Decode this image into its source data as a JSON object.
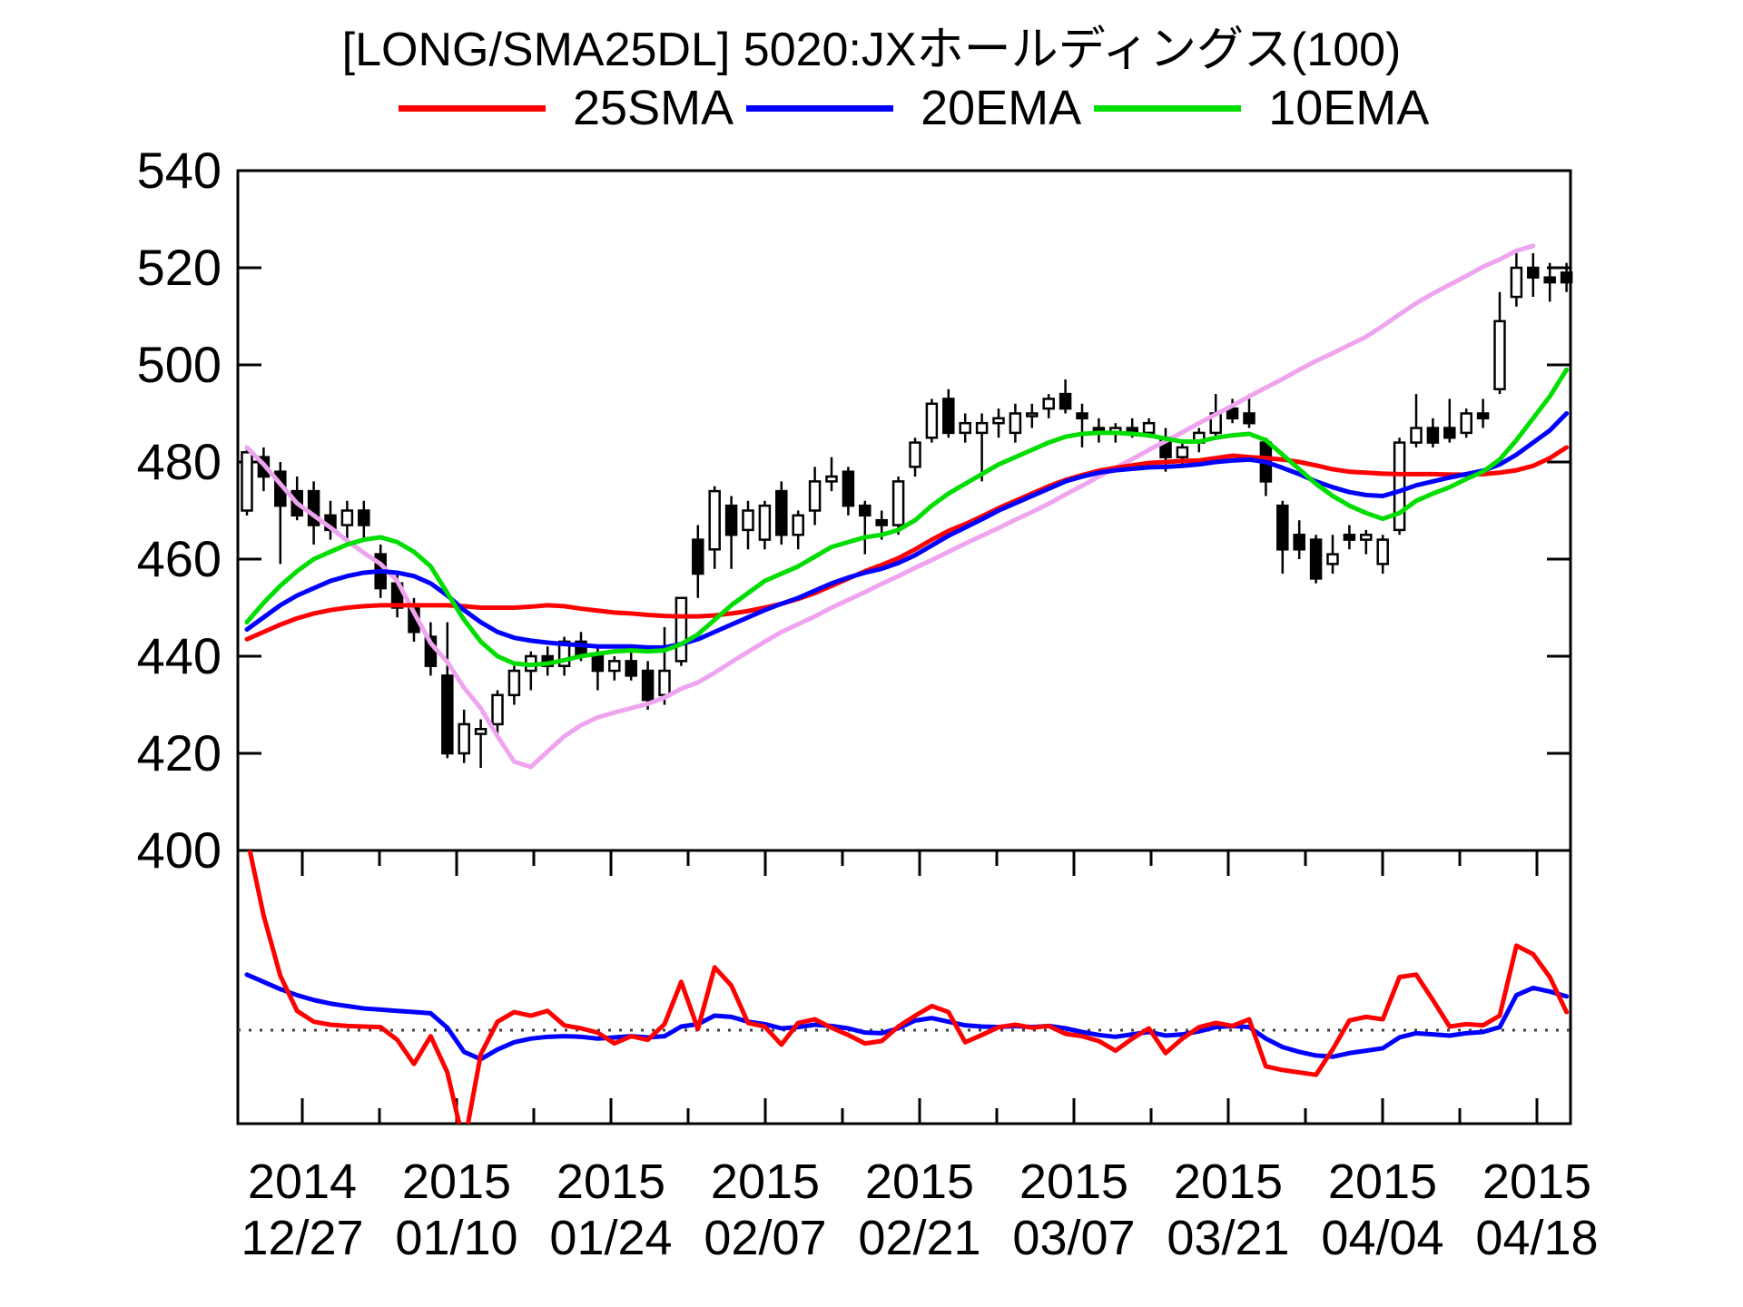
{
  "title": "[LONG/SMA25DL] 5020:JXホールディングス(100)",
  "legend": {
    "items": [
      {
        "label": "25SMA",
        "color": "#ff0000"
      },
      {
        "label": "20EMA",
        "color": "#0000ff"
      },
      {
        "label": "10EMA",
        "color": "#00dd00"
      }
    ]
  },
  "chart_data": {
    "type": "candlestick",
    "title": "[LONG/SMA25DL] 5020:JXホールディングス(100)",
    "symbol": "5020",
    "name": "JXホールディングス",
    "lot": "100",
    "grid": false,
    "frame_color": "#000000",
    "candle_up_fill": "#ffffff",
    "candle_down_fill": "#000000",
    "candle_outline": "#000000",
    "y_axis": {
      "min": 400,
      "max": 540,
      "step": 20,
      "tick_labels": [
        "400",
        "420",
        "440",
        "460",
        "480",
        "500",
        "520",
        "540"
      ]
    },
    "x_axis": {
      "labels": [
        {
          "year": "2014",
          "date": "12/27"
        },
        {
          "year": "2015",
          "date": "01/10"
        },
        {
          "year": "2015",
          "date": "01/24"
        },
        {
          "year": "2015",
          "date": "02/07"
        },
        {
          "year": "2015",
          "date": "02/21"
        },
        {
          "year": "2015",
          "date": "03/07"
        },
        {
          "year": "2015",
          "date": "03/21"
        },
        {
          "year": "2015",
          "date": "04/04"
        },
        {
          "year": "2015",
          "date": "04/18"
        }
      ],
      "minor_ticks_per_label": 2
    },
    "candles_ohlc": [
      [
        470,
        483,
        469,
        482
      ],
      [
        481,
        483,
        474,
        477
      ],
      [
        478,
        480,
        459,
        471
      ],
      [
        474,
        477,
        468,
        469
      ],
      [
        474,
        476,
        463,
        467
      ],
      [
        469,
        472,
        464,
        466
      ],
      [
        467,
        472,
        463,
        470
      ],
      [
        470,
        472,
        464,
        467
      ],
      [
        461,
        463,
        452,
        454
      ],
      [
        455,
        457,
        448,
        450
      ],
      [
        450,
        452,
        443,
        445
      ],
      [
        444,
        447,
        436,
        438
      ],
      [
        436,
        447,
        419,
        420
      ],
      [
        420,
        429,
        418,
        426
      ],
      [
        424,
        427,
        417,
        425
      ],
      [
        426,
        433,
        424,
        432
      ],
      [
        432,
        438,
        430,
        437
      ],
      [
        437,
        441,
        433,
        440
      ],
      [
        440,
        442,
        436,
        438
      ],
      [
        438,
        444,
        436,
        443
      ],
      [
        443,
        445,
        439,
        440
      ],
      [
        440,
        442,
        433,
        437
      ],
      [
        437,
        440,
        435,
        439
      ],
      [
        439,
        441,
        435,
        436
      ],
      [
        437,
        439,
        429,
        431
      ],
      [
        432,
        446,
        430,
        437
      ],
      [
        439,
        452,
        438,
        452
      ],
      [
        464,
        467,
        452,
        457
      ],
      [
        462,
        475,
        458,
        474
      ],
      [
        471,
        473,
        458,
        465
      ],
      [
        466,
        472,
        462,
        470
      ],
      [
        464,
        472,
        462,
        471
      ],
      [
        474,
        476,
        463,
        465
      ],
      [
        465,
        470,
        462,
        469
      ],
      [
        470,
        479,
        467,
        476
      ],
      [
        476,
        481,
        474,
        477
      ],
      [
        478,
        479,
        469,
        471
      ],
      [
        471,
        472,
        461,
        469
      ],
      [
        468,
        470,
        464,
        467
      ],
      [
        467,
        477,
        465,
        476
      ],
      [
        479,
        485,
        477,
        484
      ],
      [
        485,
        493,
        484,
        492
      ],
      [
        493,
        495,
        485,
        486
      ],
      [
        486,
        490,
        484,
        488
      ],
      [
        486,
        490,
        476,
        488
      ],
      [
        488,
        491,
        485,
        489
      ],
      [
        486,
        492,
        484,
        490
      ],
      [
        490,
        492,
        487,
        490
      ],
      [
        491,
        494,
        489,
        493
      ],
      [
        494,
        497,
        490,
        491
      ],
      [
        490,
        492,
        483,
        489
      ],
      [
        487,
        489,
        484,
        486
      ],
      [
        486,
        488,
        484,
        487
      ],
      [
        487,
        489,
        485,
        486
      ],
      [
        486,
        489,
        485,
        488
      ],
      [
        485,
        487,
        478,
        481
      ],
      [
        481,
        484,
        479,
        483
      ],
      [
        484,
        487,
        482,
        486
      ],
      [
        486,
        494,
        485,
        490
      ],
      [
        491,
        493,
        488,
        489
      ],
      [
        490,
        494,
        487,
        488
      ],
      [
        484,
        485,
        473,
        476
      ],
      [
        471,
        472,
        457,
        462
      ],
      [
        465,
        468,
        460,
        462
      ],
      [
        464,
        465,
        455,
        456
      ],
      [
        459,
        465,
        457,
        461
      ],
      [
        465,
        467,
        462,
        464
      ],
      [
        464,
        466,
        461,
        465
      ],
      [
        459,
        465,
        457,
        464
      ],
      [
        466,
        485,
        465,
        484
      ],
      [
        484,
        494,
        483,
        487
      ],
      [
        487,
        489,
        483,
        484
      ],
      [
        487,
        493,
        484,
        485
      ],
      [
        486,
        491,
        485,
        490
      ],
      [
        490,
        493,
        487,
        489
      ],
      [
        495,
        515,
        494,
        509
      ],
      [
        514,
        523,
        512,
        520
      ],
      [
        520,
        523,
        514,
        518
      ],
      [
        518,
        521,
        513,
        517
      ],
      [
        519,
        521,
        515,
        517
      ]
    ],
    "series": {
      "sma25": {
        "label": "25SMA",
        "color": "#ff0000",
        "values": [
          443.5,
          445,
          446.5,
          447.8,
          448.8,
          449.5,
          450,
          450.3,
          450.5,
          450.5,
          450.5,
          450.5,
          450.5,
          450.3,
          450,
          450,
          450,
          450.2,
          450.5,
          450.3,
          449.8,
          449.4,
          449,
          448.8,
          448.5,
          448.3,
          448.2,
          448.2,
          448.4,
          448.8,
          449.3,
          450,
          450.8,
          451.8,
          453,
          454.5,
          456,
          457.5,
          458.8,
          460.2,
          462,
          464,
          465.8,
          467.2,
          468.8,
          470.5,
          472,
          473.5,
          475,
          476.3,
          477.3,
          478.2,
          478.8,
          479.3,
          479.8,
          480,
          480.2,
          480.3,
          480.8,
          481.3,
          481,
          480.8,
          480.5,
          480,
          479.3,
          478.5,
          478,
          477.8,
          477.6,
          477.5,
          477.5,
          477.5,
          477.4,
          477.4,
          477.5,
          477.8,
          478.3,
          479.2,
          480.8,
          483
        ]
      },
      "ema20": {
        "label": "20EMA",
        "color": "#0000ff",
        "values": [
          445.5,
          448,
          450.5,
          452.5,
          454,
          455.5,
          456.5,
          457.2,
          457.5,
          457.2,
          456.5,
          455,
          452.5,
          449.5,
          447,
          445,
          443.8,
          443.2,
          442.8,
          442.5,
          442.3,
          442,
          442,
          442,
          441.8,
          441.8,
          442.5,
          443.5,
          445,
          446.5,
          448,
          449.5,
          450.8,
          452,
          453.5,
          455,
          456.2,
          457.2,
          458,
          459.2,
          460.8,
          462.8,
          464.8,
          466.5,
          468.2,
          470,
          471.5,
          473,
          474.5,
          476,
          477,
          477.8,
          478.3,
          478.6,
          478.9,
          479,
          479.2,
          479.5,
          480,
          480.3,
          480.5,
          480,
          478.8,
          477.5,
          476,
          474.8,
          473.8,
          473.2,
          473,
          474,
          475.2,
          476,
          476.8,
          477.5,
          478.2,
          479.5,
          481.5,
          484,
          486.5,
          490
        ]
      },
      "ema10": {
        "label": "10EMA",
        "color": "#00dd00",
        "values": [
          447,
          451,
          454.5,
          457.5,
          460,
          461.5,
          463,
          464,
          464.5,
          463.5,
          461.5,
          458.5,
          453,
          447.5,
          443,
          440,
          438.5,
          438.2,
          438.5,
          439.2,
          440,
          440.5,
          441,
          441.2,
          441,
          441.2,
          442.5,
          444.5,
          447.5,
          450.5,
          453,
          455.5,
          457,
          458.5,
          460.5,
          462.5,
          463.5,
          464.5,
          465,
          466,
          468,
          471,
          473.5,
          475.5,
          477.5,
          479.5,
          481,
          482.5,
          484,
          485.2,
          485.8,
          486,
          486,
          485.8,
          485.5,
          484.8,
          484.2,
          484.2,
          485,
          485.5,
          485.8,
          484.5,
          481.5,
          478.5,
          475.5,
          473,
          471,
          469.5,
          468.3,
          469.5,
          472,
          473.5,
          474.8,
          476.5,
          478,
          480.5,
          484.5,
          489,
          493.5,
          499
        ]
      },
      "sma25dl": {
        "label": "SMA25DL",
        "color": "#efa4ef",
        "values": [
          483,
          479.5,
          475.5,
          471.5,
          469,
          466.5,
          463.8,
          461.3,
          459,
          455.5,
          449,
          442.7,
          438.8,
          433.5,
          429.3,
          423.5,
          418.3,
          417.2,
          420.4,
          423.5,
          425.8,
          427.4,
          428.4,
          429.3,
          430.2,
          431.5,
          433.3,
          434.6,
          436.6,
          438.8,
          440.9,
          443,
          445,
          446.6,
          448.2,
          450,
          451.6,
          453.2,
          454.9,
          456.5,
          458.2,
          459.8,
          461.5,
          463.2,
          464.8,
          466.4,
          468.1,
          469.7,
          471.4,
          473.3,
          475.1,
          477,
          478.8,
          480.6,
          482.5,
          484.3,
          486.1,
          488,
          489.8,
          491.6,
          493.5,
          495.3,
          497.1,
          499,
          500.8,
          502.4,
          504.1,
          505.8,
          508,
          510.4,
          512.7,
          514.7,
          516.5,
          518.3,
          520.2,
          521.7,
          523.5,
          524.5
        ]
      }
    },
    "lower_panel": {
      "description": "deviation oscillator, unlabeled scale, dotted zero line",
      "ylim": [
        -7.75,
        15.1
      ],
      "zero_line_color": "#404040",
      "series": [
        {
          "name": "red",
          "color": "#ff0000",
          "values": [
            16,
            9.5,
            4.5,
            1.6,
            0.7,
            0.45,
            0.35,
            0.3,
            0.25,
            -0.8,
            -2.8,
            -0.5,
            -3.5,
            -9.5,
            -2,
            0.7,
            1.5,
            1.2,
            1.6,
            0.4,
            0.15,
            -0.2,
            -1.1,
            -0.5,
            -0.8,
            0.5,
            4,
            0.1,
            5.2,
            3.7,
            0.6,
            0.3,
            -1.2,
            0.6,
            0.9,
            0.2,
            -0.4,
            -1.1,
            -0.9,
            0.3,
            1.2,
            2,
            1.5,
            -1,
            -0.4,
            0.25,
            0.45,
            0.2,
            0.35,
            -0.3,
            -0.5,
            -0.9,
            -1.7,
            -0.7,
            0.15,
            -1.9,
            -0.7,
            0.25,
            0.6,
            0.35,
            0.9,
            -3,
            -3.3,
            -3.5,
            -3.7,
            -1.6,
            0.8,
            1.1,
            0.9,
            4.4,
            4.6,
            2.5,
            0.3,
            0.5,
            0.4,
            1.2,
            7,
            6.3,
            4.4,
            1.5
          ]
        },
        {
          "name": "blue",
          "color": "#0000ff",
          "values": [
            4.6,
            4,
            3.4,
            2.9,
            2.5,
            2.2,
            2,
            1.8,
            1.7,
            1.6,
            1.5,
            1.4,
            0.2,
            -1.8,
            -2.4,
            -1.6,
            -1,
            -0.7,
            -0.55,
            -0.5,
            -0.55,
            -0.7,
            -0.6,
            -0.5,
            -0.6,
            -0.5,
            0.3,
            0.5,
            1.2,
            1.1,
            0.7,
            0.5,
            0.15,
            0.25,
            0.45,
            0.35,
            0.15,
            -0.2,
            -0.25,
            0.15,
            0.8,
            1,
            0.7,
            0.4,
            0.3,
            0.25,
            0.35,
            0.25,
            0.35,
            0.15,
            -0.15,
            -0.4,
            -0.55,
            -0.35,
            -0.15,
            -0.45,
            -0.35,
            -0.1,
            0.25,
            0.35,
            0.25,
            -0.7,
            -1.4,
            -1.8,
            -2.1,
            -2.2,
            -1.9,
            -1.7,
            -1.5,
            -0.6,
            -0.25,
            -0.35,
            -0.45,
            -0.25,
            -0.15,
            0.25,
            2.9,
            3.5,
            3.2,
            2.8
          ]
        }
      ]
    }
  }
}
